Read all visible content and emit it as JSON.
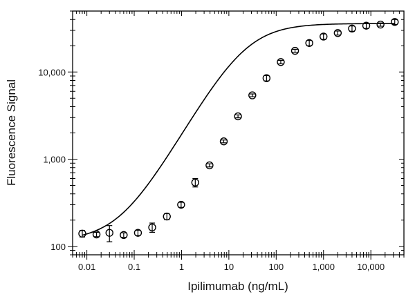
{
  "chart_data": {
    "type": "scatter",
    "title": "",
    "xlabel": "Ipilimumab (ng/mL)",
    "ylabel": "Fluorescence Signal",
    "x_scale": "log",
    "y_scale": "log",
    "xlim": [
      0.005,
      50000
    ],
    "ylim": [
      80,
      50000
    ],
    "grid": false,
    "legend": "none",
    "x_ticks": [
      0.01,
      0.1,
      1,
      10,
      100,
      1000,
      10000
    ],
    "x_tick_labels": [
      "0.01",
      "0.1",
      "1",
      "10",
      "100",
      "1,000",
      "10,000"
    ],
    "y_ticks": [
      100,
      1000,
      10000
    ],
    "y_tick_labels": [
      "100",
      "1,000",
      "10,000"
    ],
    "series": [
      {
        "style": "open-circle-with-error-bars",
        "x": [
          0.008,
          0.016,
          0.03,
          0.06,
          0.12,
          0.24,
          0.49,
          0.98,
          1.95,
          3.9,
          7.8,
          15.6,
          31.3,
          62.5,
          125,
          250,
          500,
          1000,
          2000,
          4000,
          8000,
          16000,
          32000
        ],
        "y": [
          140,
          137,
          143,
          135,
          143,
          165,
          220,
          300,
          540,
          850,
          1600,
          3100,
          5400,
          8500,
          13000,
          17500,
          21500,
          25500,
          28000,
          31500,
          34000,
          35000,
          37500
        ],
        "err": [
          12,
          8,
          30,
          8,
          10,
          20,
          18,
          20,
          60,
          35,
          60,
          120,
          200,
          600,
          600,
          700,
          1500,
          1800,
          1500,
          2200,
          2400,
          1500,
          2500
        ]
      },
      {
        "style": "fitted-curve",
        "model": "4PL",
        "bottom": 115,
        "top": 36000,
        "ec50": 22,
        "hill": 0.95
      }
    ]
  }
}
